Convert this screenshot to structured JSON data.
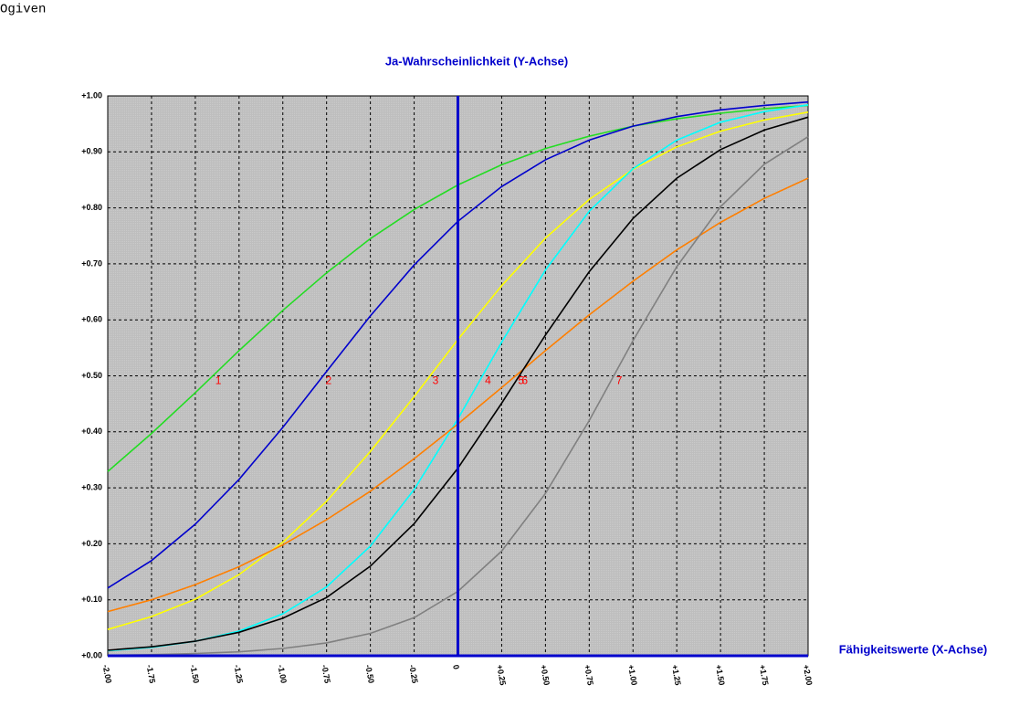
{
  "chart_data": {
    "type": "line",
    "title": "Ogiven",
    "y_label": "Ja-Wahrscheinlichkeit (Y-Achse)",
    "x_label": "Fähigkeitswerte (X-Achse)",
    "x": [
      -2,
      -1.75,
      -1.5,
      -1.25,
      -1,
      -0.75,
      -0.5,
      -0.25,
      0,
      0.25,
      0.5,
      0.75,
      1,
      1.25,
      1.5,
      1.75,
      2
    ],
    "series": [
      {
        "name": "1",
        "color": "#22dd22",
        "values": [
          0.329,
          0.397,
          0.47,
          0.545,
          0.617,
          0.684,
          0.745,
          0.797,
          0.841,
          0.877,
          0.906,
          0.928,
          0.946,
          0.959,
          0.969,
          0.977,
          0.983
        ]
      },
      {
        "name": "2",
        "color": "#0000cc",
        "values": [
          0.121,
          0.17,
          0.235,
          0.315,
          0.408,
          0.508,
          0.607,
          0.698,
          0.776,
          0.838,
          0.886,
          0.921,
          0.946,
          0.963,
          0.975,
          0.983,
          0.989
        ]
      },
      {
        "name": "3",
        "color": "#ffff00",
        "values": [
          0.047,
          0.07,
          0.101,
          0.145,
          0.203,
          0.276,
          0.365,
          0.463,
          0.565,
          0.661,
          0.746,
          0.815,
          0.869,
          0.909,
          0.937,
          0.957,
          0.971
        ]
      },
      {
        "name": "4",
        "color": "#00ffff",
        "values": [
          0.009,
          0.015,
          0.026,
          0.044,
          0.075,
          0.123,
          0.196,
          0.297,
          0.423,
          0.56,
          0.689,
          0.794,
          0.87,
          0.921,
          0.953,
          0.972,
          0.984
        ]
      },
      {
        "name": "5",
        "color": "#ff7f00",
        "values": [
          0.079,
          0.1,
          0.127,
          0.159,
          0.198,
          0.243,
          0.294,
          0.352,
          0.414,
          0.479,
          0.545,
          0.609,
          0.669,
          0.725,
          0.774,
          0.817,
          0.853
        ]
      },
      {
        "name": "6",
        "color": "#000000",
        "values": [
          0.01,
          0.016,
          0.026,
          0.042,
          0.067,
          0.104,
          0.16,
          0.236,
          0.335,
          0.451,
          0.573,
          0.686,
          0.781,
          0.853,
          0.904,
          0.939,
          0.962
        ]
      },
      {
        "name": "7",
        "color": "#808080",
        "values": [
          0.001,
          0.002,
          0.004,
          0.007,
          0.013,
          0.023,
          0.04,
          0.068,
          0.115,
          0.187,
          0.29,
          0.42,
          0.563,
          0.695,
          0.802,
          0.878,
          0.927
        ]
      }
    ],
    "xlim": [
      -2,
      2
    ],
    "ylim": [
      0,
      1
    ],
    "xticks": [
      {
        "value": -2,
        "label": "-2.00"
      },
      {
        "value": -1.75,
        "label": "-1.75"
      },
      {
        "value": -1.5,
        "label": "-1.50"
      },
      {
        "value": -1.25,
        "label": "-1.25"
      },
      {
        "value": -1,
        "label": "-1.00"
      },
      {
        "value": -0.75,
        "label": "-0.75"
      },
      {
        "value": -0.5,
        "label": "-0.50"
      },
      {
        "value": -0.25,
        "label": "-0.25"
      },
      0,
      {
        "value": 0.25,
        "label": "+0.25"
      },
      {
        "value": 0.5,
        "label": "+0.50"
      },
      {
        "value": 0.75,
        "label": "+0.75"
      },
      {
        "value": 1,
        "label": "+1.00"
      },
      {
        "value": 1.25,
        "label": "+1.25"
      },
      {
        "value": 1.5,
        "label": "+1.50"
      },
      {
        "value": 1.75,
        "label": "+1.75"
      },
      {
        "value": 2,
        "label": "+2.00"
      }
    ],
    "yticks": [
      {
        "value": 0,
        "label": "+0.00"
      },
      {
        "value": 0.1,
        "label": "+0.10"
      },
      {
        "value": 0.2,
        "label": "+0.20"
      },
      {
        "value": 0.3,
        "label": "+0.30"
      },
      {
        "value": 0.4,
        "label": "+0.40"
      },
      {
        "value": 0.5,
        "label": "+0.50"
      },
      {
        "value": 0.6,
        "label": "+0.60"
      },
      {
        "value": 0.7,
        "label": "+0.70"
      },
      {
        "value": 0.8,
        "label": "+0.80"
      },
      {
        "value": 0.9,
        "label": "+0.90"
      },
      {
        "value": 1,
        "label": "+1.00"
      }
    ],
    "grid": true,
    "background": "#c0c0c0",
    "axis_color": "#0000cc",
    "series_label_color": "#ff0000"
  }
}
